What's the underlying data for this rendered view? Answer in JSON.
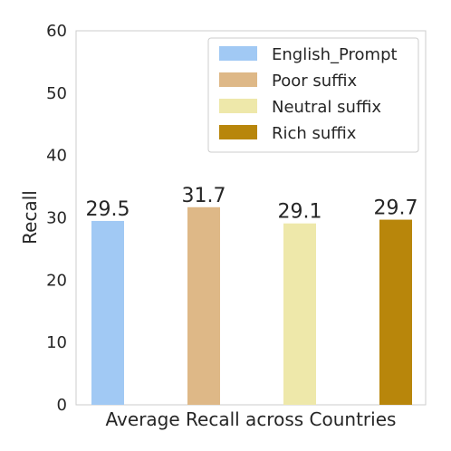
{
  "chart_data": {
    "type": "bar",
    "title": "",
    "xlabel": "Average Recall across Countries",
    "ylabel": "Recall",
    "ylim": [
      0,
      60
    ],
    "yticks": [
      0,
      10,
      20,
      30,
      40,
      50,
      60
    ],
    "categories": [
      "Average Recall across Countries"
    ],
    "series": [
      {
        "name": "English_Prompt",
        "values": [
          29.5
        ],
        "color": "#a1c9f4",
        "label": "29.5"
      },
      {
        "name": "Poor suffix",
        "values": [
          31.7
        ],
        "color": "#deb887",
        "label": "31.7"
      },
      {
        "name": "Neutral suffix",
        "values": [
          29.1
        ],
        "color": "#eee8aa",
        "label": "29.1"
      },
      {
        "name": "Rich suffix",
        "values": [
          29.7
        ],
        "color": "#b8860b",
        "label": "29.7"
      }
    ],
    "grid": false,
    "legend_position": "top-right"
  }
}
